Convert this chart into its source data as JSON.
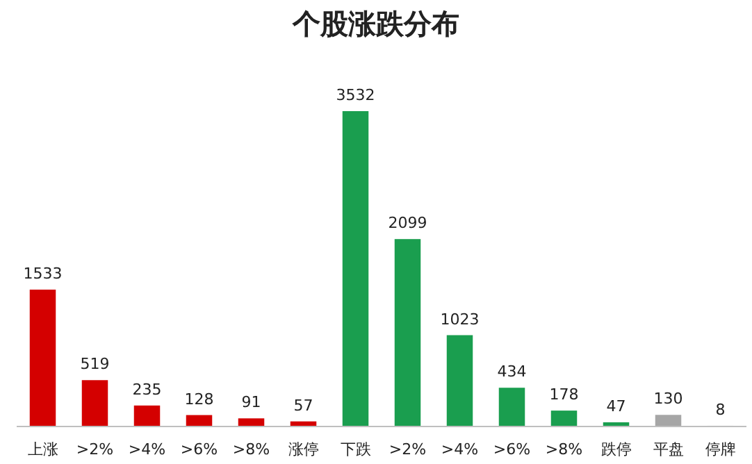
{
  "chart_data": {
    "type": "bar",
    "title": "个股涨跌分布",
    "categories": [
      "上涨",
      ">2%",
      ">4%",
      ">6%",
      ">8%",
      "涨停",
      "下跌",
      ">2%",
      ">4%",
      ">6%",
      ">8%",
      "跌停",
      "平盘",
      "停牌"
    ],
    "values": [
      1533,
      519,
      235,
      128,
      91,
      57,
      3532,
      2099,
      1023,
      434,
      178,
      47,
      130,
      8
    ],
    "colors": [
      "#d40000",
      "#d40000",
      "#d40000",
      "#d40000",
      "#d40000",
      "#d40000",
      "#1a9e4f",
      "#1a9e4f",
      "#1a9e4f",
      "#1a9e4f",
      "#1a9e4f",
      "#1a9e4f",
      "#a6a6a6",
      "#7f7f7f"
    ],
    "data_labels": true
  }
}
